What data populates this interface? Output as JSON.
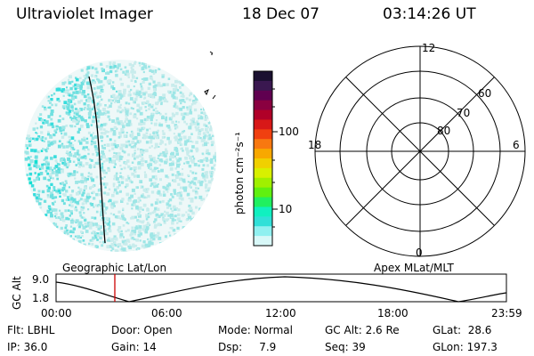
{
  "header": {
    "instrument": "Ultraviolet Imager",
    "date": "18 Dec 07",
    "time": "03:14:26 UT"
  },
  "colorbar": {
    "unit_label": "photon cm⁻²s⁻¹",
    "ticks": [
      "100",
      "10"
    ],
    "colors": [
      "#1a1030",
      "#3a1850",
      "#600050",
      "#8a0040",
      "#b00028",
      "#d81818",
      "#f04010",
      "#f87810",
      "#f8a800",
      "#f0d000",
      "#d8f000",
      "#a0f000",
      "#60f010",
      "#20f060",
      "#10f0c0",
      "#30e0d8",
      "#90f0f0",
      "#d8f8f8"
    ]
  },
  "left_panel": {
    "speckle_colors": [
      "#c8ecec",
      "#9ee6e6",
      "#6ee0e0",
      "#36dddd",
      "#12e0d2"
    ]
  },
  "polar_grid": {
    "mlt_labels": {
      "top": "12",
      "bottom": "0",
      "left": "18",
      "right": "6"
    },
    "lat_labels": [
      "60",
      "70",
      "80"
    ]
  },
  "altitude_strip": {
    "left_label": "Geographic Lat/Lon",
    "right_label": "Apex MLat/MLT",
    "y_axis_label": "GC Alt",
    "y_ticks": [
      "9.0",
      "1.8"
    ],
    "x_ticks": [
      "00:00",
      "06:00",
      "12:00",
      "18:00",
      "23:59"
    ],
    "marker_color": "#cc0000"
  },
  "status": {
    "filter": "Flt: LBHL",
    "ip": "IP: 36.0",
    "door": "Door: Open",
    "gain": "Gain: 14",
    "mode": "Mode: Normal",
    "dsp": "Dsp:     7.9",
    "gc_alt": "GC Alt: 2.6 Re",
    "seq": "Seq: 39",
    "glat": "GLat:  28.6",
    "glon": "GLon: 197.3"
  }
}
